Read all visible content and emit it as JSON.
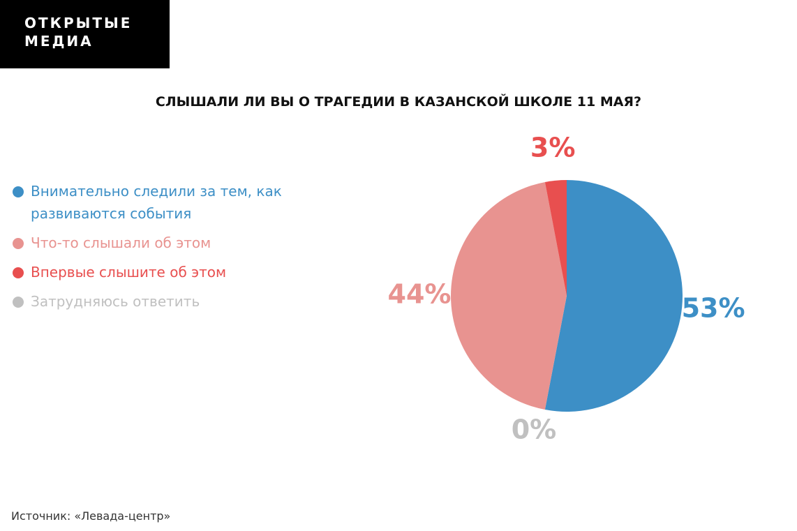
{
  "logo": [
    "ОТКРЫТЫЕ",
    "МЕДИА"
  ],
  "chart_data": {
    "type": "pie",
    "title": "СЛЫШАЛИ ЛИ ВЫ О ТРАГЕДИИ В КАЗАНСКОЙ ШКОЛЕ 11 МАЯ?",
    "categories": [
      "Внимательно следили за тем, как развиваются события",
      "Что-то слышали об этом",
      "Впервые слышите об этом",
      "Затрудняюсь ответить"
    ],
    "values": [
      53,
      44,
      3,
      0
    ],
    "value_labels": [
      "53%",
      "44%",
      "3%",
      "0%"
    ],
    "colors": [
      "#3d8fc6",
      "#e89390",
      "#e84f4f",
      "#c0c0c0"
    ],
    "legend": "left"
  },
  "source": "Источник: «Левада-центр»"
}
